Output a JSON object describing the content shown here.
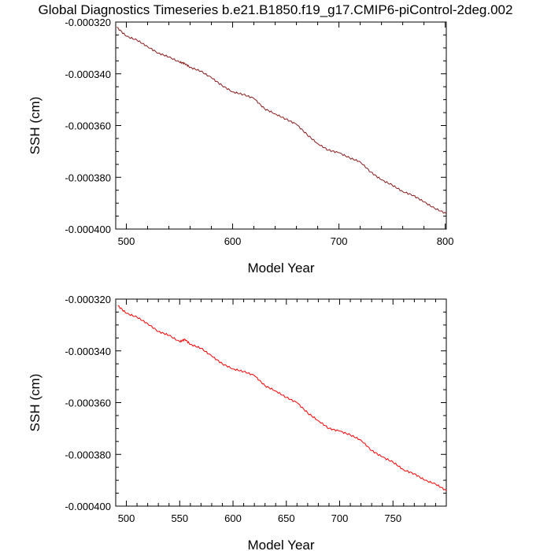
{
  "title": "Global Diagnostics Timeseries b.e21.B1850.f19_g17.CMIP6-piControl-2deg.002",
  "chart_data": [
    {
      "type": "line",
      "xlabel": "Model Year",
      "ylabel": "SSH (cm)",
      "xlim": [
        490,
        801
      ],
      "ylim": [
        -0.0004,
        -0.00032
      ],
      "xticks": [
        500,
        600,
        700,
        800
      ],
      "xtick_labels": [
        "500",
        "600",
        "700",
        "800"
      ],
      "yticks": [
        -0.00032,
        -0.00034,
        -0.00036,
        -0.00038,
        -0.0004
      ],
      "ytick_labels": [
        "-0.000320",
        "-0.000340",
        "-0.000360",
        "-0.000380",
        "-0.000400"
      ],
      "series": [
        {
          "color": "#8b1a1a",
          "x": [
            491,
            500,
            510,
            520,
            530,
            540,
            550,
            555,
            560,
            570,
            580,
            590,
            600,
            610,
            620,
            630,
            640,
            650,
            660,
            670,
            680,
            690,
            700,
            710,
            720,
            730,
            740,
            750,
            760,
            770,
            780,
            790,
            801
          ],
          "y": [
            -0.000322,
            -0.0003255,
            -0.000327,
            -0.0003295,
            -0.000332,
            -0.0003335,
            -0.0003355,
            -0.000336,
            -0.0003375,
            -0.000339,
            -0.0003415,
            -0.0003445,
            -0.000347,
            -0.000348,
            -0.0003495,
            -0.0003535,
            -0.0003555,
            -0.0003575,
            -0.0003595,
            -0.0003635,
            -0.000367,
            -0.0003695,
            -0.0003705,
            -0.0003725,
            -0.000374,
            -0.000378,
            -0.000381,
            -0.000383,
            -0.0003855,
            -0.000387,
            -0.0003895,
            -0.000392,
            -0.000394
          ]
        }
      ]
    },
    {
      "type": "line",
      "xlabel": "Model Year",
      "ylabel": "SSH (cm)",
      "xlim": [
        490,
        800
      ],
      "ylim": [
        -0.0004,
        -0.00032
      ],
      "xticks": [
        500,
        550,
        600,
        650,
        700,
        750
      ],
      "xtick_labels": [
        "500",
        "550",
        "600",
        "650",
        "700",
        "750"
      ],
      "yticks": [
        -0.00032,
        -0.00034,
        -0.00036,
        -0.00038,
        -0.0004
      ],
      "ytick_labels": [
        "-0.000320",
        "-0.000340",
        "-0.000360",
        "-0.000380",
        "-0.000400"
      ],
      "series": [
        {
          "color": "#ff0000",
          "x": [
            492,
            500,
            510,
            520,
            530,
            540,
            550,
            555,
            560,
            570,
            580,
            590,
            600,
            610,
            620,
            630,
            640,
            650,
            660,
            670,
            680,
            690,
            700,
            710,
            720,
            730,
            740,
            750,
            760,
            770,
            780,
            790,
            800
          ],
          "y": [
            -0.0003225,
            -0.0003255,
            -0.000327,
            -0.0003295,
            -0.0003325,
            -0.000334,
            -0.0003365,
            -0.0003355,
            -0.0003375,
            -0.000339,
            -0.000342,
            -0.000345,
            -0.000347,
            -0.000348,
            -0.0003495,
            -0.0003535,
            -0.0003555,
            -0.000358,
            -0.00036,
            -0.000364,
            -0.000367,
            -0.00037,
            -0.000371,
            -0.0003725,
            -0.0003745,
            -0.0003785,
            -0.000381,
            -0.000383,
            -0.000386,
            -0.0003875,
            -0.00039,
            -0.0003915,
            -0.000394
          ]
        }
      ]
    }
  ]
}
